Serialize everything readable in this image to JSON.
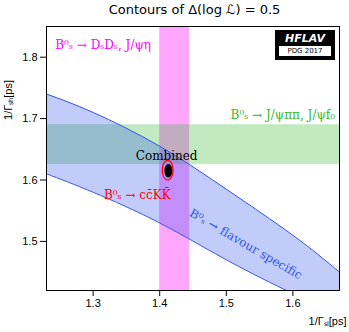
{
  "chart_data": {
    "type": "constraints",
    "title": "Contours of Δ(log ℒ) = 0.5",
    "x_label": "1/Γₛₗ[ps]",
    "y_label": "1/Γₛₕ[ps]",
    "xlim": [
      1.23,
      1.67
    ],
    "ylim": [
      1.42,
      1.85
    ],
    "xticks": [
      1.3,
      1.4,
      1.5,
      1.6
    ],
    "yticks": [
      1.5,
      1.6,
      1.7,
      1.8
    ],
    "grid": false,
    "logo": {
      "title": "HFLAV",
      "subtitle": "PDG 2017"
    },
    "series": [
      {
        "name": "B⁰ₛ → DₛDₛ, J/ψη",
        "color": "#ff00ff",
        "type": "vband",
        "x": [
          1.4,
          1.445
        ]
      },
      {
        "name": "B⁰ₛ → J/ψππ, J/ψf₀",
        "color": "#33bb33",
        "type": "hband",
        "y": [
          1.625,
          1.69
        ]
      },
      {
        "name": "B⁰ₛ → flavour specific",
        "color": "#3355ee",
        "type": "area",
        "x": [
          1.23,
          1.3,
          1.4,
          1.5,
          1.6,
          1.67
        ],
        "y_low": [
          1.61,
          1.58,
          1.53,
          1.47,
          1.415,
          1.38
        ],
        "y_high": [
          1.74,
          1.71,
          1.655,
          1.585,
          1.51,
          1.45
        ]
      },
      {
        "name": "B⁰ₛ → cc̄KK̄",
        "color": "#ff0000",
        "type": "ellipse",
        "marker": "open",
        "center": [
          1.412,
          1.616
        ],
        "rx": 0.008,
        "ry": 0.016
      },
      {
        "name": "Combined",
        "color": "#000000",
        "type": "ellipse",
        "marker": "filled",
        "center": [
          1.413,
          1.615
        ],
        "rx": 0.005,
        "ry": 0.01
      }
    ]
  }
}
